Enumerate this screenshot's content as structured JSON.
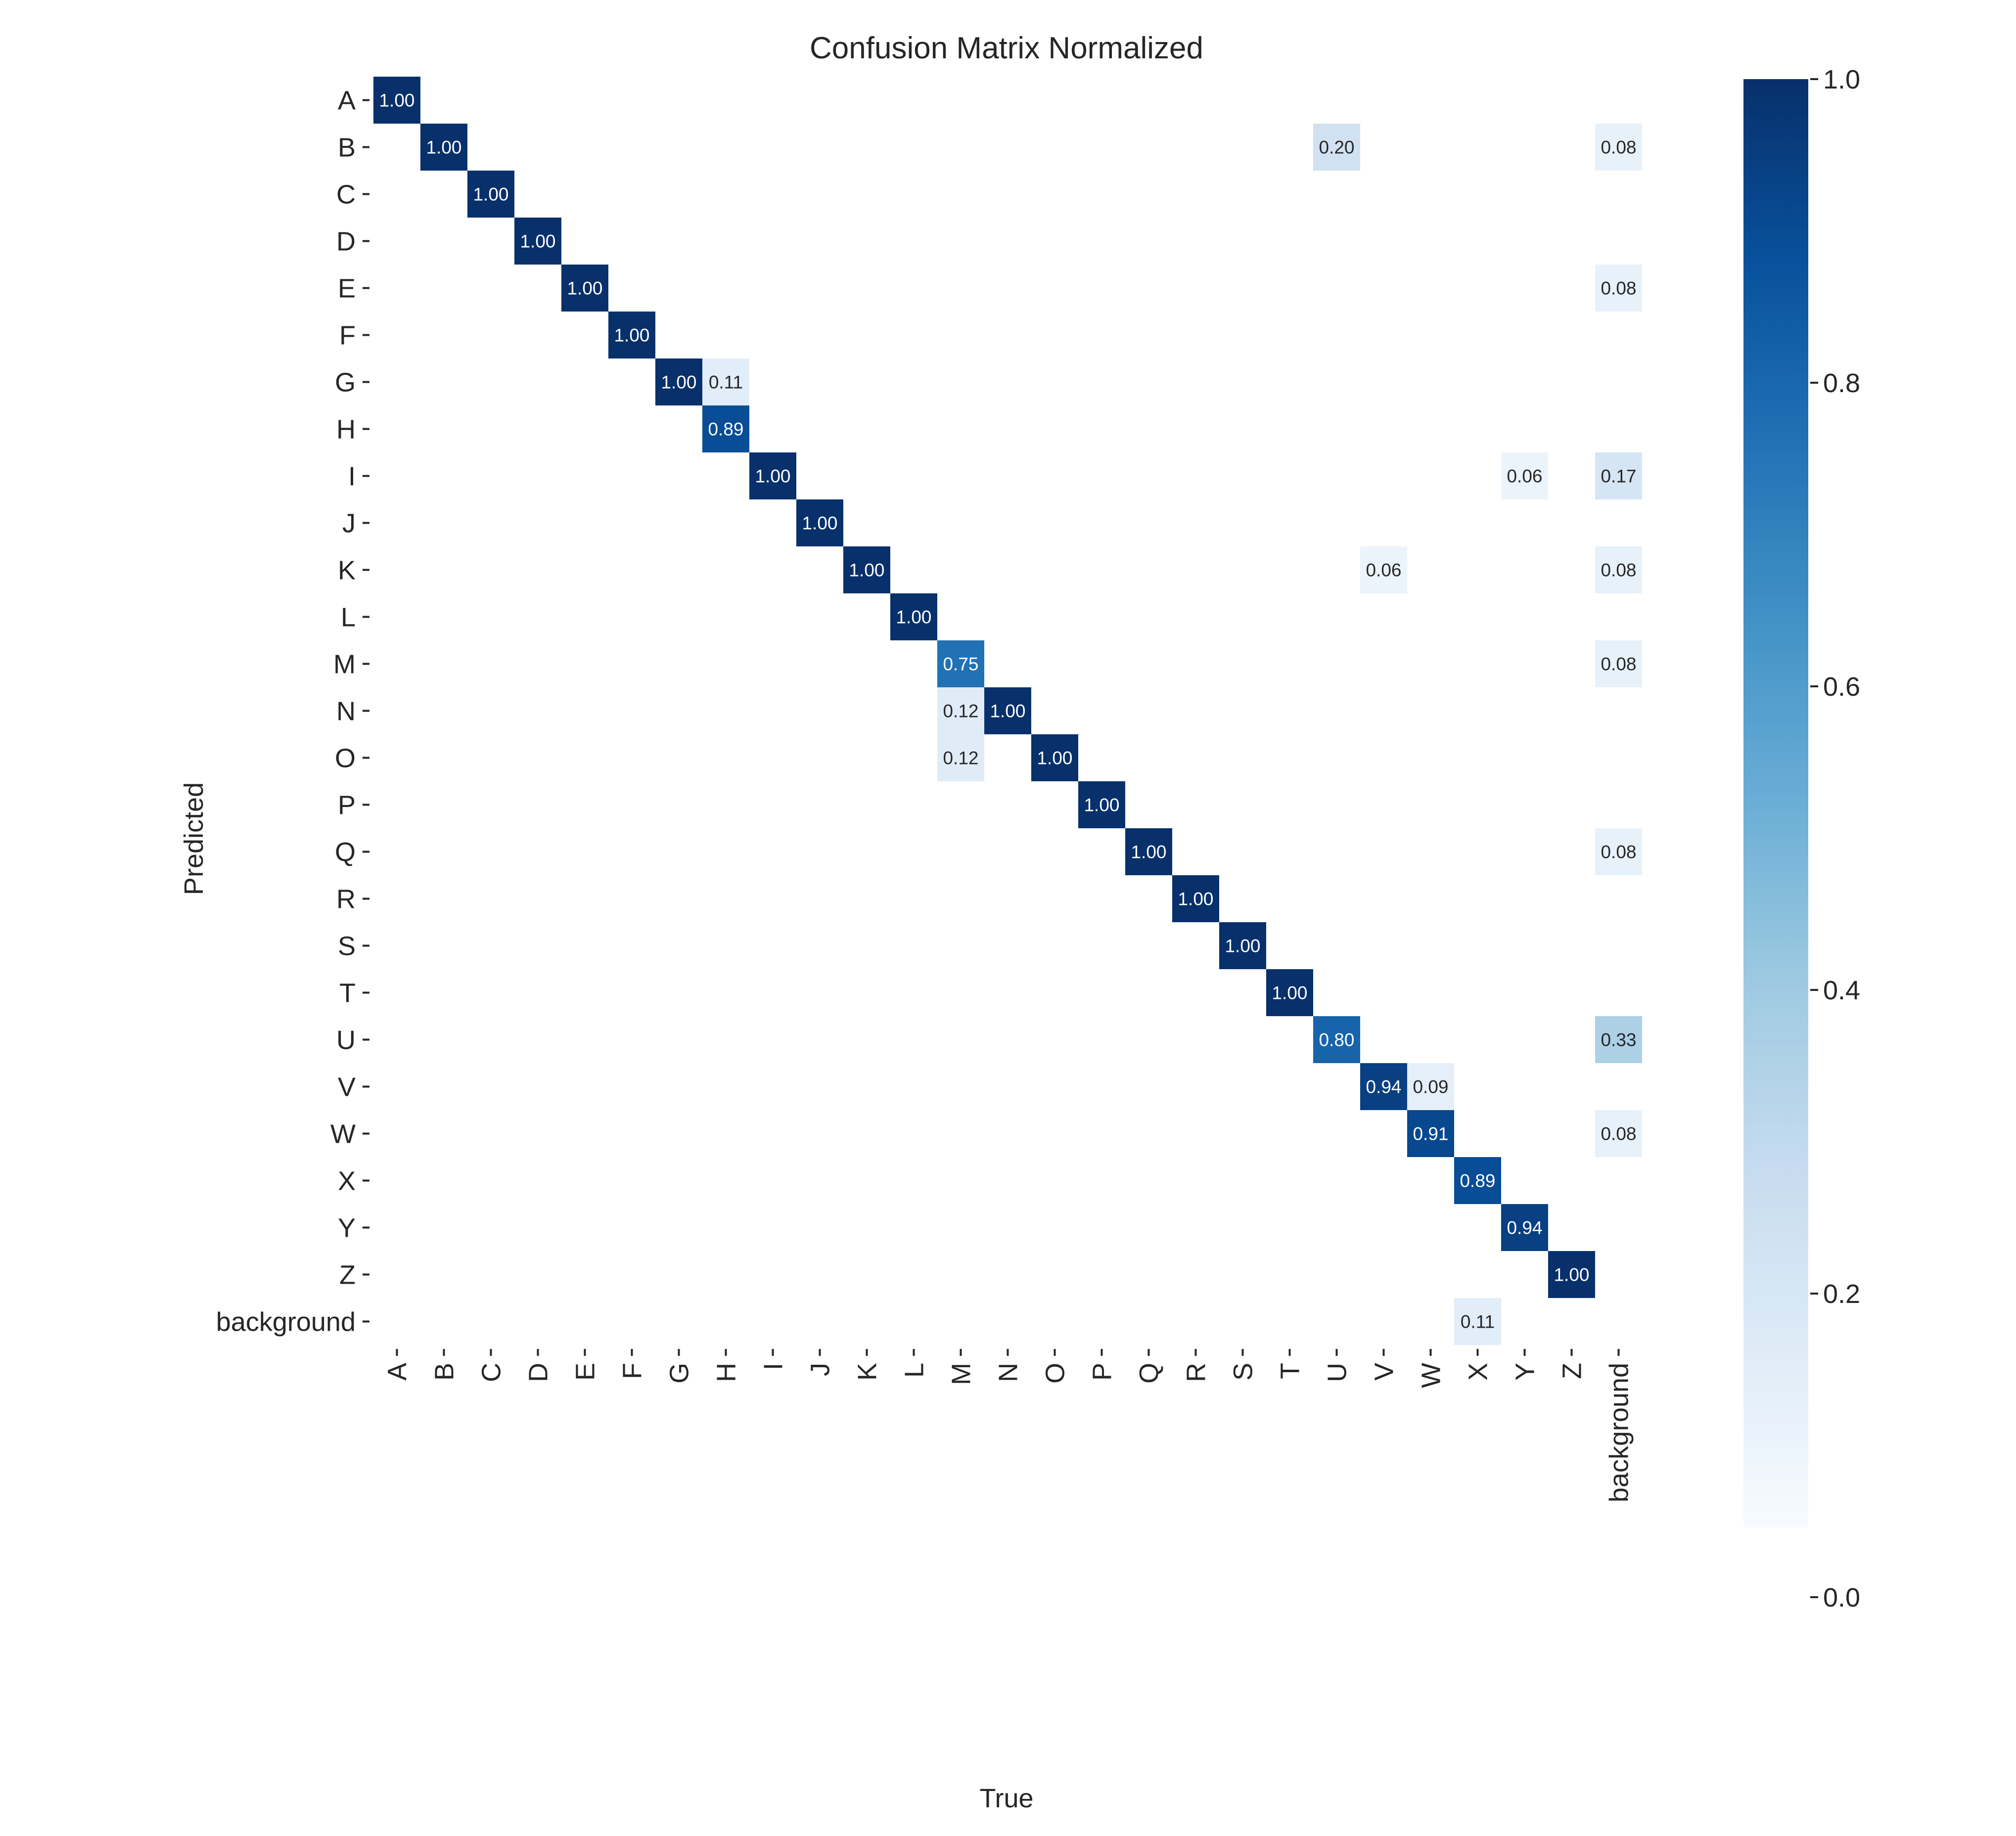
{
  "chart_data": {
    "type": "heatmap",
    "title": "Confusion Matrix Normalized",
    "xlabel": "True",
    "ylabel": "Predicted",
    "x_categories": [
      "A",
      "B",
      "C",
      "D",
      "E",
      "F",
      "G",
      "H",
      "I",
      "J",
      "K",
      "L",
      "M",
      "N",
      "O",
      "P",
      "Q",
      "R",
      "S",
      "T",
      "U",
      "V",
      "W",
      "X",
      "Y",
      "Z",
      "background"
    ],
    "y_categories": [
      "A",
      "B",
      "C",
      "D",
      "E",
      "F",
      "G",
      "H",
      "I",
      "J",
      "K",
      "L",
      "M",
      "N",
      "O",
      "P",
      "Q",
      "R",
      "S",
      "T",
      "U",
      "V",
      "W",
      "X",
      "Y",
      "Z",
      "background"
    ],
    "cells": [
      {
        "pred": "A",
        "true": "A",
        "value": 1.0
      },
      {
        "pred": "B",
        "true": "B",
        "value": 1.0
      },
      {
        "pred": "B",
        "true": "U",
        "value": 0.2
      },
      {
        "pred": "B",
        "true": "background",
        "value": 0.08
      },
      {
        "pred": "C",
        "true": "C",
        "value": 1.0
      },
      {
        "pred": "D",
        "true": "D",
        "value": 1.0
      },
      {
        "pred": "E",
        "true": "E",
        "value": 1.0
      },
      {
        "pred": "E",
        "true": "background",
        "value": 0.08
      },
      {
        "pred": "F",
        "true": "F",
        "value": 1.0
      },
      {
        "pred": "G",
        "true": "G",
        "value": 1.0
      },
      {
        "pred": "G",
        "true": "H",
        "value": 0.11
      },
      {
        "pred": "H",
        "true": "H",
        "value": 0.89
      },
      {
        "pred": "I",
        "true": "I",
        "value": 1.0
      },
      {
        "pred": "I",
        "true": "Y",
        "value": 0.06
      },
      {
        "pred": "I",
        "true": "background",
        "value": 0.17
      },
      {
        "pred": "J",
        "true": "J",
        "value": 1.0
      },
      {
        "pred": "K",
        "true": "K",
        "value": 1.0
      },
      {
        "pred": "K",
        "true": "V",
        "value": 0.06
      },
      {
        "pred": "K",
        "true": "background",
        "value": 0.08
      },
      {
        "pred": "L",
        "true": "L",
        "value": 1.0
      },
      {
        "pred": "M",
        "true": "M",
        "value": 0.75
      },
      {
        "pred": "M",
        "true": "background",
        "value": 0.08
      },
      {
        "pred": "N",
        "true": "M",
        "value": 0.12
      },
      {
        "pred": "N",
        "true": "N",
        "value": 1.0
      },
      {
        "pred": "O",
        "true": "M",
        "value": 0.12
      },
      {
        "pred": "O",
        "true": "O",
        "value": 1.0
      },
      {
        "pred": "P",
        "true": "P",
        "value": 1.0
      },
      {
        "pred": "Q",
        "true": "Q",
        "value": 1.0
      },
      {
        "pred": "Q",
        "true": "background",
        "value": 0.08
      },
      {
        "pred": "R",
        "true": "R",
        "value": 1.0
      },
      {
        "pred": "S",
        "true": "S",
        "value": 1.0
      },
      {
        "pred": "T",
        "true": "T",
        "value": 1.0
      },
      {
        "pred": "U",
        "true": "U",
        "value": 0.8
      },
      {
        "pred": "U",
        "true": "background",
        "value": 0.33
      },
      {
        "pred": "V",
        "true": "V",
        "value": 0.94
      },
      {
        "pred": "V",
        "true": "W",
        "value": 0.09
      },
      {
        "pred": "W",
        "true": "W",
        "value": 0.91
      },
      {
        "pred": "W",
        "true": "background",
        "value": 0.08
      },
      {
        "pred": "X",
        "true": "X",
        "value": 0.89
      },
      {
        "pred": "Y",
        "true": "Y",
        "value": 0.94
      },
      {
        "pred": "Z",
        "true": "Z",
        "value": 1.0
      },
      {
        "pred": "background",
        "true": "X",
        "value": 0.11
      }
    ],
    "value_range": [
      0.0,
      1.0
    ],
    "colorbar": {
      "ticks": [
        "0.0",
        "0.2",
        "0.4",
        "0.6",
        "0.8",
        "1.0"
      ],
      "tick_values": [
        0.0,
        0.2,
        0.4,
        0.6,
        0.8,
        1.0
      ]
    },
    "colormap": "Blues",
    "colors": {
      "low": "#f7fbff",
      "high": "#08306b"
    },
    "grid": false,
    "annotations": true
  }
}
